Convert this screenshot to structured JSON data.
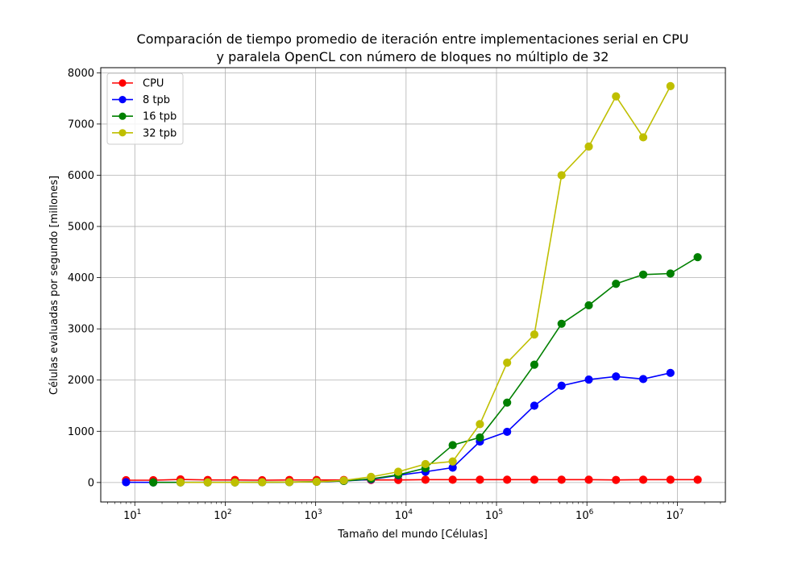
{
  "chart_data": {
    "type": "line",
    "title": "Comparación de tiempo promedio de iteración entre implementaciones serial en CPU",
    "subtitle": "y paralela OpenCL con número de bloques no múltiplo de 32",
    "xlabel": "Tamaño del mundo [Células]",
    "ylabel": "Células evaluadas por segundo [millones]",
    "x_scale": "log",
    "xlim": [
      4.2,
      34000000
    ],
    "ylim": [
      -380,
      8100
    ],
    "grid": true,
    "legend_position": "top-left",
    "x_ticks": [
      {
        "value": 10,
        "base": "10",
        "exp": "1"
      },
      {
        "value": 100,
        "base": "10",
        "exp": "2"
      },
      {
        "value": 1000,
        "base": "10",
        "exp": "3"
      },
      {
        "value": 10000,
        "base": "10",
        "exp": "4"
      },
      {
        "value": 100000,
        "base": "10",
        "exp": "5"
      },
      {
        "value": 1000000,
        "base": "10",
        "exp": "6"
      },
      {
        "value": 10000000,
        "base": "10",
        "exp": "7"
      }
    ],
    "y_ticks": [
      0,
      1000,
      2000,
      3000,
      4000,
      5000,
      6000,
      7000,
      8000
    ],
    "series": [
      {
        "name": "CPU",
        "color": "#ff0000",
        "x": [
          8,
          16,
          32,
          64,
          128,
          256,
          512,
          1024,
          2048,
          4096,
          8192,
          16384,
          32768,
          65536,
          131072,
          262144,
          524288,
          1048576,
          2097152,
          4194304,
          8388608,
          16777216
        ],
        "y": [
          45,
          45,
          60,
          50,
          50,
          45,
          50,
          50,
          50,
          50,
          50,
          55,
          55,
          55,
          55,
          55,
          55,
          55,
          50,
          55,
          55,
          55
        ]
      },
      {
        "name": "8 tpb",
        "color": "#0000ff",
        "x": [
          8,
          16,
          32,
          64,
          128,
          256,
          512,
          1024,
          2048,
          4096,
          8192,
          16384,
          32768,
          65536,
          131072,
          262144,
          524288,
          1048576,
          2097152,
          4194304,
          8388608
        ],
        "y": [
          5,
          2,
          3,
          3,
          3,
          5,
          8,
          15,
          30,
          60,
          140,
          210,
          290,
          800,
          990,
          1500,
          1890,
          2010,
          2070,
          2020,
          2140
        ]
      },
      {
        "name": "16 tpb",
        "color": "#008000",
        "x": [
          16,
          32,
          64,
          128,
          256,
          512,
          1024,
          2048,
          4096,
          8192,
          16384,
          32768,
          65536,
          131072,
          262144,
          524288,
          1048576,
          2097152,
          4194304,
          8388608,
          16777216
        ],
        "y": [
          2,
          3,
          3,
          3,
          5,
          8,
          15,
          30,
          70,
          150,
          280,
          730,
          880,
          1560,
          2300,
          3100,
          3460,
          3880,
          4060,
          4080,
          4400
        ]
      },
      {
        "name": "32 tpb",
        "color": "#bfbf00",
        "x": [
          32,
          64,
          128,
          256,
          512,
          1024,
          2048,
          4096,
          8192,
          16384,
          32768,
          65536,
          131072,
          262144,
          524288,
          1048576,
          2097152,
          4194304,
          8388608
        ],
        "y": [
          3,
          3,
          3,
          5,
          8,
          15,
          40,
          110,
          210,
          360,
          410,
          1140,
          2340,
          2890,
          6000,
          6560,
          7540,
          6740,
          7740
        ]
      }
    ]
  }
}
